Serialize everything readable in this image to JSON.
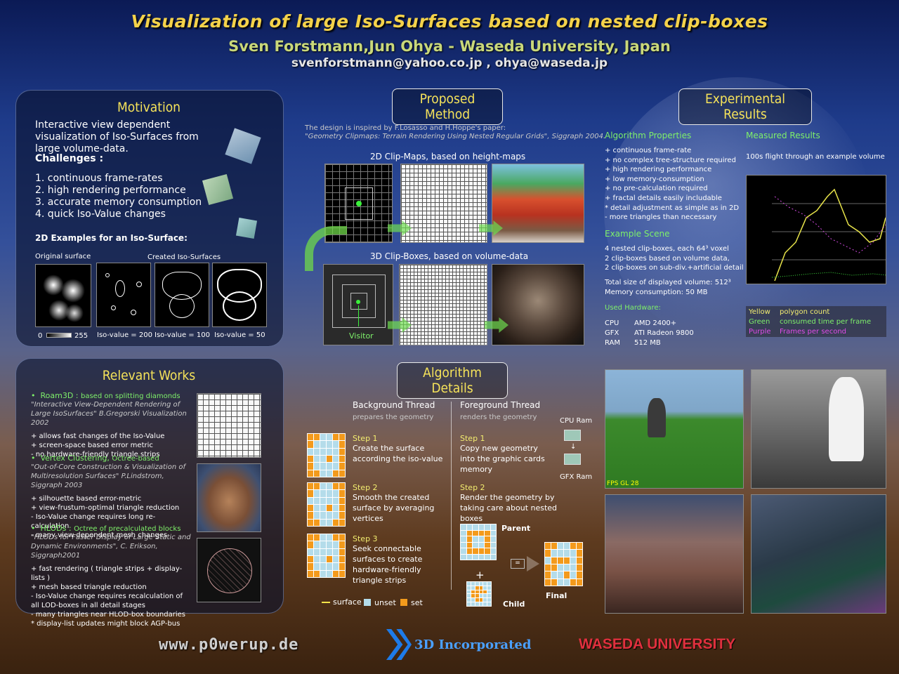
{
  "header": {
    "title": "Visualization of large Iso-Surfaces based on nested clip-boxes",
    "authors": "Sven Forstmann,Jun Ohya - Waseda University, Japan",
    "emails": "svenforstmann@yahoo.co.jp , ohya@waseda.jp"
  },
  "motivation": {
    "title": "Motivation",
    "intro": "Interactive view dependent visualization of Iso-Surfaces from large volume-data.",
    "challenges_title": "Challenges :",
    "challenges": [
      "1.  continuous frame-rates",
      "2.  high rendering performance",
      "3.  accurate memory consumption",
      "4.  quick Iso-Value changes"
    ],
    "examples_title": "2D Examples for an Iso-Surface:",
    "original_label": "Original surface",
    "created_label": "Created Iso-Surfaces",
    "scale_min": "0",
    "scale_max": "255",
    "iso_labels": [
      "Iso-value = 200",
      "Iso-value = 100",
      "Iso-value = 50"
    ]
  },
  "relevant": {
    "title": "Relevant Works",
    "items": [
      {
        "name": "Roam3D :",
        "desc": "based on splitting diamonds",
        "ref": "\"Interactive View-Dependent Rendering of Large IsoSurfaces\" B.Gregorski Visualization 2002",
        "points": [
          "+ allows fast changes of the Iso-Value",
          "+ screen-space based error metric",
          "-  no hardware-friendly triangle strips"
        ]
      },
      {
        "name": "Vertex Clustering,",
        "desc": "Octree-based",
        "ref": "\"Out-of-Core Construction & Visualization of Multiresolution Surfaces\" P.Lindstrom, Siggraph 2003",
        "points": [
          "+ silhouette based error-metric",
          "+ view-frustum-optimal triangle reduction",
          "-  Iso-Value change requires long re-calculation",
          "-  many view dependent mesh changes"
        ]
      },
      {
        "name": "HLODs :",
        "desc": "Octree of precalculated blocks",
        "ref": "\"HLODs for Faster Display of Large Static and Dynamic Environments\", C. Erikson, Siggraph2001",
        "points": [
          "+ fast rendering ( triangle strips + display-lists )",
          "+ mesh based triangle reduction",
          "-  Iso-Value change requires recalculation of all LOD-boxes in all detail stages",
          "-  many triangles near HLOD-box boundaries",
          "* display-list updates might block AGP-bus"
        ]
      }
    ]
  },
  "proposed": {
    "title": "Proposed Method",
    "inspired": "The design is inspired by F.Losasso and H.Hoppe's paper:",
    "paper": "\"Geometry Clipmaps: Terrain Rendering Using Nested Regular Grids\", Siggraph 2004.",
    "clipmaps_label": "2D Clip-Maps, based on height-maps",
    "clipboxes_label": "3D Clip-Boxes, based on volume-data",
    "visitor_label": "Visitor"
  },
  "algorithm": {
    "title": "Algorithm Details",
    "bg_title": "Background Thread",
    "bg_sub": "prepares the geometry",
    "fg_title": "Foreground Thread",
    "fg_sub": "renders the geometry",
    "bg_steps": [
      {
        "step": "Step 1",
        "text": "Create the surface according the iso-value"
      },
      {
        "step": "Step 2",
        "text": "Smooth the created surface by averaging vertices"
      },
      {
        "step": "Step 3",
        "text": "Seek connectable surfaces to create hardware-friendly triangle strips"
      }
    ],
    "fg_steps": [
      {
        "step": "Step 1",
        "text": "Copy new geometry into the graphic cards memory"
      },
      {
        "step": "Step 2",
        "text": "Render the geometry by taking care about nested boxes"
      }
    ],
    "cpu_ram": "CPU Ram",
    "gfx_ram": "GFX Ram",
    "parent": "Parent",
    "child": "Child",
    "final": "Final",
    "plus": "+",
    "equals": "=",
    "legend_surface": "surface",
    "legend_unset": "unset",
    "legend_set": "set"
  },
  "results": {
    "title": "Experimental Results",
    "props_title": "Algorithm Properties",
    "props": [
      "+ continuous frame-rate",
      "+ no complex tree-structure required",
      "+ high rendering performance",
      "+ low memory-consumption",
      "+ no pre-calculation required",
      "+ fractal details easily includable",
      "* detail adjustment as simple as in 2D",
      "- more triangles than necessary"
    ],
    "scene_title": "Example Scene",
    "scene_lines": [
      "4 nested clip-boxes, each 64³ voxel",
      "2 clip-boxes based on volume data,",
      "2 clip-boxes on sub-div.+artificial detail"
    ],
    "size_lines": [
      "Total size of displayed volume: 512³",
      "Memory consumption: 50 MB"
    ],
    "hw_title": "Used Hardware:",
    "hw": [
      [
        "CPU",
        "AMD 2400+"
      ],
      [
        "GFX",
        "ATI Radeon 9800"
      ],
      [
        "RAM",
        "512 MB"
      ]
    ],
    "measured_title": "Measured Results",
    "measured_desc": "100s flight through an example volume",
    "chart_legend": [
      [
        "Yellow",
        "polygon count"
      ],
      [
        "Green",
        "consumed time per frame"
      ],
      [
        "Purple",
        "Frames per second"
      ]
    ],
    "screenshot_overlay": "FPS  GL  28"
  },
  "footer": {
    "website": "www.p0werup.de",
    "company": "3D Incorporated",
    "university": "WASEDA UNIVERSITY"
  },
  "colors": {
    "accent_yellow": "#f6e35a",
    "green": "#7ef06a",
    "purple": "#e04be8",
    "set_orange": "#f39a1c",
    "unset_blue": "#b4dcea"
  }
}
